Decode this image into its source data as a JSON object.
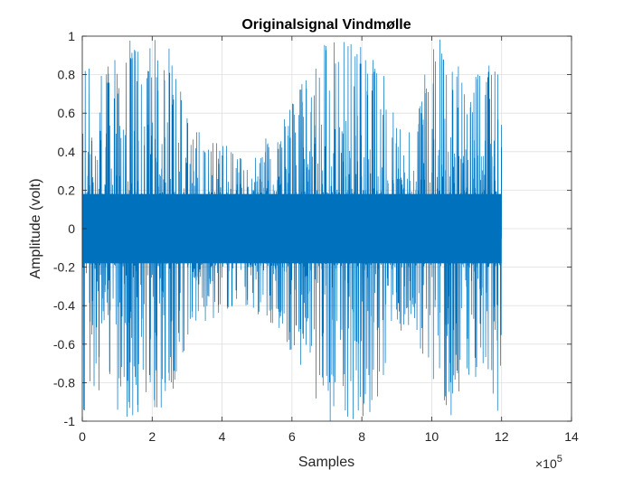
{
  "chart_data": {
    "type": "line",
    "title": "Originalsignal Vindmølle",
    "xlabel": "Samples",
    "ylabel": "Amplitude (volt)",
    "xlim": [
      0,
      14
    ],
    "ylim": [
      -1,
      1
    ],
    "x_scale_label": "×10",
    "x_scale_exponent": "5",
    "x_ticks": [
      "0",
      "2",
      "4",
      "6",
      "8",
      "10",
      "12",
      "14"
    ],
    "y_ticks": [
      "-1",
      "-0.8",
      "-0.6",
      "-0.4",
      "-0.2",
      "0",
      "0.2",
      "0.4",
      "0.6",
      "0.8",
      "1"
    ],
    "grid": true,
    "series": [
      {
        "color": "#0072BD",
        "x_range": [
          0,
          12
        ],
        "envelope": [
          {
            "x": 0.0,
            "amp": 1.0
          },
          {
            "x": 0.5,
            "amp": 0.85
          },
          {
            "x": 1.0,
            "amp": 0.95
          },
          {
            "x": 1.5,
            "amp": 1.0
          },
          {
            "x": 2.0,
            "amp": 1.0
          },
          {
            "x": 2.5,
            "amp": 0.95
          },
          {
            "x": 3.0,
            "amp": 0.6
          },
          {
            "x": 3.5,
            "amp": 0.5
          },
          {
            "x": 4.0,
            "amp": 0.45
          },
          {
            "x": 4.5,
            "amp": 0.4
          },
          {
            "x": 5.0,
            "amp": 0.45
          },
          {
            "x": 5.5,
            "amp": 0.5
          },
          {
            "x": 6.0,
            "amp": 0.65
          },
          {
            "x": 6.5,
            "amp": 0.85
          },
          {
            "x": 7.0,
            "amp": 1.0
          },
          {
            "x": 7.5,
            "amp": 1.0
          },
          {
            "x": 8.0,
            "amp": 1.0
          },
          {
            "x": 8.5,
            "amp": 0.9
          },
          {
            "x": 9.0,
            "amp": 0.55
          },
          {
            "x": 9.5,
            "amp": 0.5
          },
          {
            "x": 10.0,
            "amp": 1.0
          },
          {
            "x": 10.5,
            "amp": 1.0
          },
          {
            "x": 11.0,
            "amp": 0.75
          },
          {
            "x": 11.5,
            "amp": 0.9
          },
          {
            "x": 12.0,
            "amp": 1.0
          }
        ],
        "core_amplitude": 0.2
      }
    ]
  }
}
